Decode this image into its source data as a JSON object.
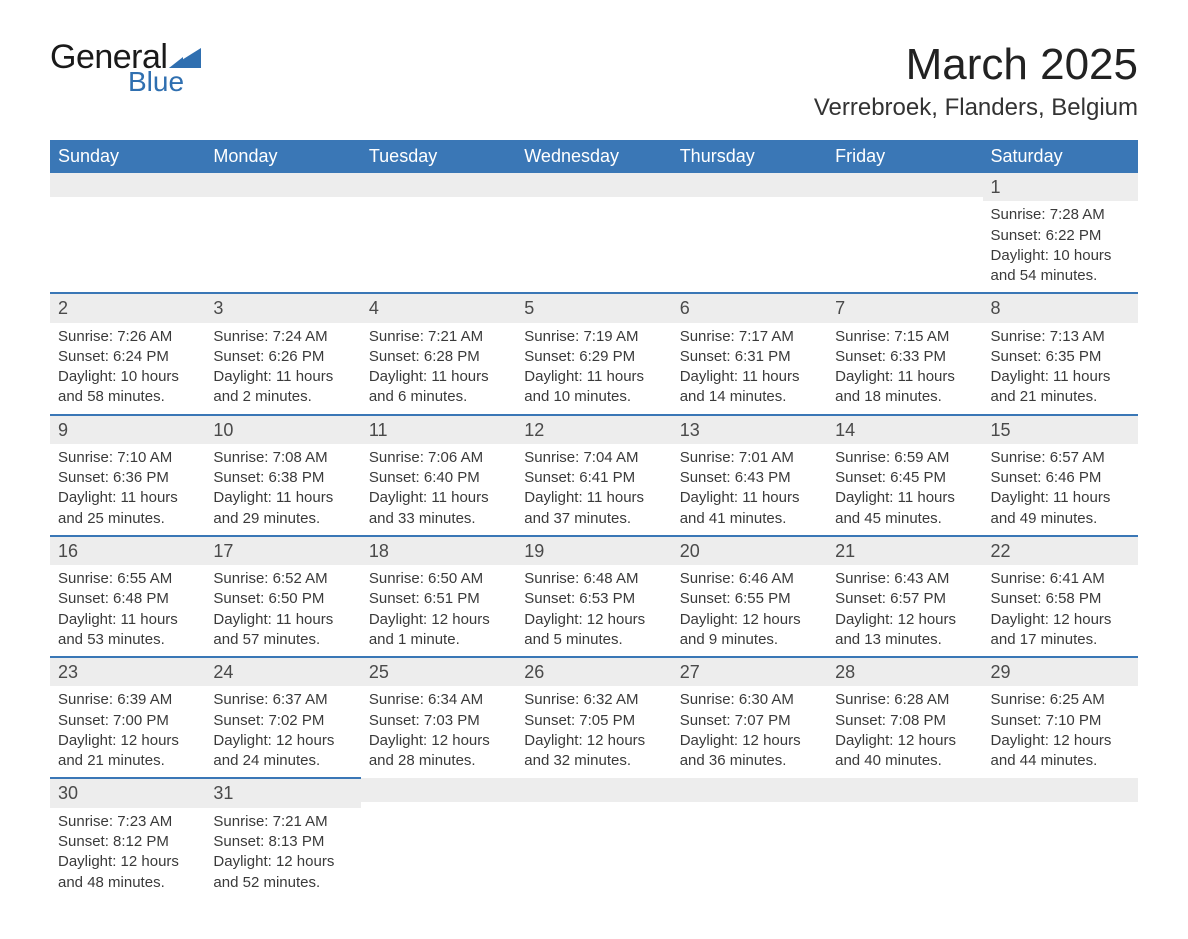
{
  "logo": {
    "general": "General",
    "blue": "Blue",
    "tri_color": "#2f6fb0"
  },
  "title": "March 2025",
  "location": "Verrebroek, Flanders, Belgium",
  "colors": {
    "header_bg": "#3a77b6",
    "header_fg": "#ffffff",
    "daynum_bg": "#ededed",
    "row_border": "#3a77b6",
    "text": "#333333"
  },
  "day_headers": [
    "Sunday",
    "Monday",
    "Tuesday",
    "Wednesday",
    "Thursday",
    "Friday",
    "Saturday"
  ],
  "weeks": [
    [
      null,
      null,
      null,
      null,
      null,
      null,
      {
        "n": "1",
        "sr": "Sunrise: 7:28 AM",
        "ss": "Sunset: 6:22 PM",
        "dl": "Daylight: 10 hours and 54 minutes."
      }
    ],
    [
      {
        "n": "2",
        "sr": "Sunrise: 7:26 AM",
        "ss": "Sunset: 6:24 PM",
        "dl": "Daylight: 10 hours and 58 minutes."
      },
      {
        "n": "3",
        "sr": "Sunrise: 7:24 AM",
        "ss": "Sunset: 6:26 PM",
        "dl": "Daylight: 11 hours and 2 minutes."
      },
      {
        "n": "4",
        "sr": "Sunrise: 7:21 AM",
        "ss": "Sunset: 6:28 PM",
        "dl": "Daylight: 11 hours and 6 minutes."
      },
      {
        "n": "5",
        "sr": "Sunrise: 7:19 AM",
        "ss": "Sunset: 6:29 PM",
        "dl": "Daylight: 11 hours and 10 minutes."
      },
      {
        "n": "6",
        "sr": "Sunrise: 7:17 AM",
        "ss": "Sunset: 6:31 PM",
        "dl": "Daylight: 11 hours and 14 minutes."
      },
      {
        "n": "7",
        "sr": "Sunrise: 7:15 AM",
        "ss": "Sunset: 6:33 PM",
        "dl": "Daylight: 11 hours and 18 minutes."
      },
      {
        "n": "8",
        "sr": "Sunrise: 7:13 AM",
        "ss": "Sunset: 6:35 PM",
        "dl": "Daylight: 11 hours and 21 minutes."
      }
    ],
    [
      {
        "n": "9",
        "sr": "Sunrise: 7:10 AM",
        "ss": "Sunset: 6:36 PM",
        "dl": "Daylight: 11 hours and 25 minutes."
      },
      {
        "n": "10",
        "sr": "Sunrise: 7:08 AM",
        "ss": "Sunset: 6:38 PM",
        "dl": "Daylight: 11 hours and 29 minutes."
      },
      {
        "n": "11",
        "sr": "Sunrise: 7:06 AM",
        "ss": "Sunset: 6:40 PM",
        "dl": "Daylight: 11 hours and 33 minutes."
      },
      {
        "n": "12",
        "sr": "Sunrise: 7:04 AM",
        "ss": "Sunset: 6:41 PM",
        "dl": "Daylight: 11 hours and 37 minutes."
      },
      {
        "n": "13",
        "sr": "Sunrise: 7:01 AM",
        "ss": "Sunset: 6:43 PM",
        "dl": "Daylight: 11 hours and 41 minutes."
      },
      {
        "n": "14",
        "sr": "Sunrise: 6:59 AM",
        "ss": "Sunset: 6:45 PM",
        "dl": "Daylight: 11 hours and 45 minutes."
      },
      {
        "n": "15",
        "sr": "Sunrise: 6:57 AM",
        "ss": "Sunset: 6:46 PM",
        "dl": "Daylight: 11 hours and 49 minutes."
      }
    ],
    [
      {
        "n": "16",
        "sr": "Sunrise: 6:55 AM",
        "ss": "Sunset: 6:48 PM",
        "dl": "Daylight: 11 hours and 53 minutes."
      },
      {
        "n": "17",
        "sr": "Sunrise: 6:52 AM",
        "ss": "Sunset: 6:50 PM",
        "dl": "Daylight: 11 hours and 57 minutes."
      },
      {
        "n": "18",
        "sr": "Sunrise: 6:50 AM",
        "ss": "Sunset: 6:51 PM",
        "dl": "Daylight: 12 hours and 1 minute."
      },
      {
        "n": "19",
        "sr": "Sunrise: 6:48 AM",
        "ss": "Sunset: 6:53 PM",
        "dl": "Daylight: 12 hours and 5 minutes."
      },
      {
        "n": "20",
        "sr": "Sunrise: 6:46 AM",
        "ss": "Sunset: 6:55 PM",
        "dl": "Daylight: 12 hours and 9 minutes."
      },
      {
        "n": "21",
        "sr": "Sunrise: 6:43 AM",
        "ss": "Sunset: 6:57 PM",
        "dl": "Daylight: 12 hours and 13 minutes."
      },
      {
        "n": "22",
        "sr": "Sunrise: 6:41 AM",
        "ss": "Sunset: 6:58 PM",
        "dl": "Daylight: 12 hours and 17 minutes."
      }
    ],
    [
      {
        "n": "23",
        "sr": "Sunrise: 6:39 AM",
        "ss": "Sunset: 7:00 PM",
        "dl": "Daylight: 12 hours and 21 minutes."
      },
      {
        "n": "24",
        "sr": "Sunrise: 6:37 AM",
        "ss": "Sunset: 7:02 PM",
        "dl": "Daylight: 12 hours and 24 minutes."
      },
      {
        "n": "25",
        "sr": "Sunrise: 6:34 AM",
        "ss": "Sunset: 7:03 PM",
        "dl": "Daylight: 12 hours and 28 minutes."
      },
      {
        "n": "26",
        "sr": "Sunrise: 6:32 AM",
        "ss": "Sunset: 7:05 PM",
        "dl": "Daylight: 12 hours and 32 minutes."
      },
      {
        "n": "27",
        "sr": "Sunrise: 6:30 AM",
        "ss": "Sunset: 7:07 PM",
        "dl": "Daylight: 12 hours and 36 minutes."
      },
      {
        "n": "28",
        "sr": "Sunrise: 6:28 AM",
        "ss": "Sunset: 7:08 PM",
        "dl": "Daylight: 12 hours and 40 minutes."
      },
      {
        "n": "29",
        "sr": "Sunrise: 6:25 AM",
        "ss": "Sunset: 7:10 PM",
        "dl": "Daylight: 12 hours and 44 minutes."
      }
    ],
    [
      {
        "n": "30",
        "sr": "Sunrise: 7:23 AM",
        "ss": "Sunset: 8:12 PM",
        "dl": "Daylight: 12 hours and 48 minutes."
      },
      {
        "n": "31",
        "sr": "Sunrise: 7:21 AM",
        "ss": "Sunset: 8:13 PM",
        "dl": "Daylight: 12 hours and 52 minutes."
      },
      null,
      null,
      null,
      null,
      null
    ]
  ]
}
